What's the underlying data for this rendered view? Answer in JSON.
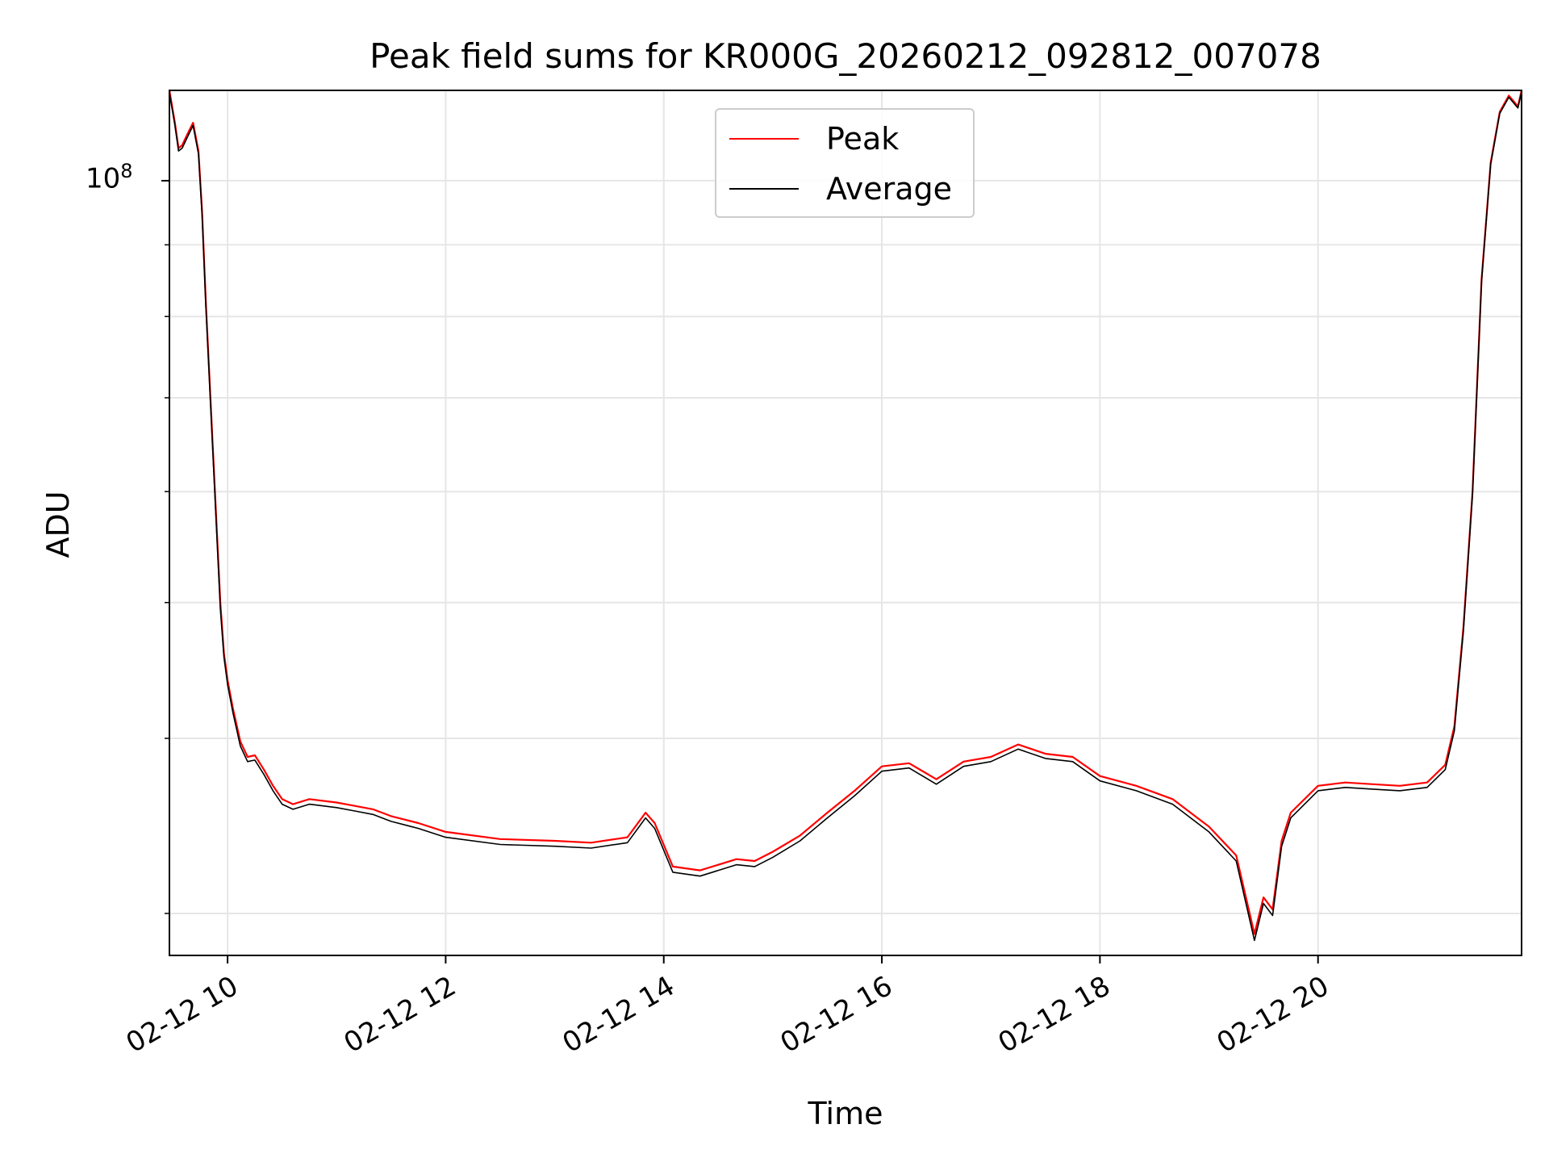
{
  "chart_data": {
    "type": "line",
    "title": "Peak field sums for KR000G_20260212_092812_007078",
    "xlabel": "Time",
    "ylabel": "ADU",
    "x_scale": "time",
    "y_scale": "log",
    "x_range": [
      "2026-02-12 09:28",
      "2026-02-12 21:52"
    ],
    "ylim": [
      28000000,
      116000000
    ],
    "x_ticks": [
      "2026-02-12 10:00",
      "2026-02-12 12:00",
      "2026-02-12 14:00",
      "2026-02-12 16:00",
      "2026-02-12 18:00",
      "2026-02-12 20:00"
    ],
    "x_tick_labels": [
      "02-12 10",
      "02-12 12",
      "02-12 14",
      "02-12 16",
      "02-12 18",
      "02-12 20"
    ],
    "y_tick_label": {
      "base": "10",
      "exp": "8",
      "value": 100000000
    },
    "y_minor_ticks": [
      30000000,
      40000000,
      50000000,
      60000000,
      70000000,
      80000000,
      90000000
    ],
    "grid": true,
    "legend_position": "top-center",
    "series": [
      {
        "name": "Peak",
        "color": "#ff0000",
        "x": [
          "2026-02-12 09:28",
          "2026-02-12 09:31",
          "2026-02-12 09:33",
          "2026-02-12 09:35",
          "2026-02-12 09:38",
          "2026-02-12 09:41",
          "2026-02-12 09:44",
          "2026-02-12 09:46",
          "2026-02-12 09:48",
          "2026-02-12 09:52",
          "2026-02-12 09:56",
          "2026-02-12 09:58",
          "2026-02-12 10:00",
          "2026-02-12 10:03",
          "2026-02-12 10:07",
          "2026-02-12 10:11",
          "2026-02-12 10:15",
          "2026-02-12 10:20",
          "2026-02-12 10:25",
          "2026-02-12 10:30",
          "2026-02-12 10:36",
          "2026-02-12 10:45",
          "2026-02-12 11:00",
          "2026-02-12 11:10",
          "2026-02-12 11:20",
          "2026-02-12 11:30",
          "2026-02-12 11:45",
          "2026-02-12 12:00",
          "2026-02-12 12:30",
          "2026-02-12 13:00",
          "2026-02-12 13:20",
          "2026-02-12 13:40",
          "2026-02-12 13:50",
          "2026-02-12 13:55",
          "2026-02-12 14:05",
          "2026-02-12 14:20",
          "2026-02-12 14:40",
          "2026-02-12 14:50",
          "2026-02-12 15:00",
          "2026-02-12 15:15",
          "2026-02-12 15:30",
          "2026-02-12 15:45",
          "2026-02-12 16:00",
          "2026-02-12 16:15",
          "2026-02-12 16:30",
          "2026-02-12 16:45",
          "2026-02-12 17:00",
          "2026-02-12 17:15",
          "2026-02-12 17:30",
          "2026-02-12 17:45",
          "2026-02-12 18:00",
          "2026-02-12 18:20",
          "2026-02-12 18:40",
          "2026-02-12 19:00",
          "2026-02-12 19:15",
          "2026-02-12 19:25",
          "2026-02-12 19:30",
          "2026-02-12 19:35",
          "2026-02-12 19:40",
          "2026-02-12 19:45",
          "2026-02-12 20:00",
          "2026-02-12 20:15",
          "2026-02-12 20:30",
          "2026-02-12 20:45",
          "2026-02-12 21:00",
          "2026-02-12 21:10",
          "2026-02-12 21:15",
          "2026-02-12 21:20",
          "2026-02-12 21:25",
          "2026-02-12 21:30",
          "2026-02-12 21:35",
          "2026-02-12 21:40",
          "2026-02-12 21:45",
          "2026-02-12 21:50",
          "2026-02-12 21:52"
        ],
        "values": [
          116000000,
          110000000,
          105500000,
          106000000,
          108000000,
          110000000,
          105000000,
          95000000,
          82000000,
          64000000,
          50000000,
          46000000,
          44000000,
          42000000,
          39800000,
          38800000,
          38900000,
          38000000,
          37000000,
          36200000,
          35900000,
          36200000,
          36000000,
          35800000,
          35600000,
          35200000,
          34800000,
          34300000,
          33900000,
          33800000,
          33700000,
          34000000,
          35400000,
          34800000,
          32400000,
          32200000,
          32800000,
          32700000,
          33200000,
          34100000,
          35400000,
          36700000,
          38200000,
          38400000,
          37400000,
          38500000,
          38800000,
          39600000,
          39000000,
          38800000,
          37600000,
          37000000,
          36200000,
          34600000,
          33000000,
          29000000,
          30800000,
          30200000,
          33800000,
          35400000,
          37000000,
          37200000,
          37100000,
          37000000,
          37200000,
          38300000,
          40800000,
          48000000,
          60000000,
          85000000,
          103000000,
          112000000,
          115000000,
          113000000,
          116000000
        ]
      },
      {
        "name": "Average",
        "color": "#000000",
        "x": [
          "2026-02-12 09:28",
          "2026-02-12 09:31",
          "2026-02-12 09:33",
          "2026-02-12 09:35",
          "2026-02-12 09:38",
          "2026-02-12 09:41",
          "2026-02-12 09:44",
          "2026-02-12 09:46",
          "2026-02-12 09:48",
          "2026-02-12 09:52",
          "2026-02-12 09:56",
          "2026-02-12 09:58",
          "2026-02-12 10:00",
          "2026-02-12 10:03",
          "2026-02-12 10:07",
          "2026-02-12 10:11",
          "2026-02-12 10:15",
          "2026-02-12 10:20",
          "2026-02-12 10:25",
          "2026-02-12 10:30",
          "2026-02-12 10:36",
          "2026-02-12 10:45",
          "2026-02-12 11:00",
          "2026-02-12 11:10",
          "2026-02-12 11:20",
          "2026-02-12 11:30",
          "2026-02-12 11:45",
          "2026-02-12 12:00",
          "2026-02-12 12:30",
          "2026-02-12 13:00",
          "2026-02-12 13:20",
          "2026-02-12 13:40",
          "2026-02-12 13:50",
          "2026-02-12 13:55",
          "2026-02-12 14:05",
          "2026-02-12 14:20",
          "2026-02-12 14:40",
          "2026-02-12 14:50",
          "2026-02-12 15:00",
          "2026-02-12 15:15",
          "2026-02-12 15:30",
          "2026-02-12 15:45",
          "2026-02-12 16:00",
          "2026-02-12 16:15",
          "2026-02-12 16:30",
          "2026-02-12 16:45",
          "2026-02-12 17:00",
          "2026-02-12 17:15",
          "2026-02-12 17:30",
          "2026-02-12 17:45",
          "2026-02-12 18:00",
          "2026-02-12 18:20",
          "2026-02-12 18:40",
          "2026-02-12 19:00",
          "2026-02-12 19:15",
          "2026-02-12 19:25",
          "2026-02-12 19:30",
          "2026-02-12 19:35",
          "2026-02-12 19:40",
          "2026-02-12 19:45",
          "2026-02-12 20:00",
          "2026-02-12 20:15",
          "2026-02-12 20:30",
          "2026-02-12 20:45",
          "2026-02-12 21:00",
          "2026-02-12 21:10",
          "2026-02-12 21:15",
          "2026-02-12 21:20",
          "2026-02-12 21:25",
          "2026-02-12 21:30",
          "2026-02-12 21:35",
          "2026-02-12 21:40",
          "2026-02-12 21:45",
          "2026-02-12 21:50",
          "2026-02-12 21:52"
        ],
        "values": [
          115500000,
          109500000,
          105000000,
          105500000,
          107500000,
          109500000,
          104500000,
          94500000,
          81500000,
          63500000,
          49500000,
          45700000,
          43700000,
          41700000,
          39500000,
          38500000,
          38600000,
          37700000,
          36700000,
          35900000,
          35600000,
          35900000,
          35700000,
          35500000,
          35300000,
          34900000,
          34500000,
          34000000,
          33600000,
          33500000,
          33400000,
          33700000,
          35100000,
          34500000,
          32100000,
          31900000,
          32500000,
          32400000,
          32900000,
          33800000,
          35100000,
          36400000,
          37900000,
          38100000,
          37100000,
          38200000,
          38500000,
          39300000,
          38700000,
          38500000,
          37300000,
          36700000,
          35900000,
          34300000,
          32700000,
          28700000,
          30500000,
          29900000,
          33500000,
          35100000,
          36700000,
          36900000,
          36800000,
          36700000,
          36900000,
          38000000,
          40500000,
          47700000,
          59700000,
          84700000,
          102700000,
          111700000,
          114700000,
          112700000,
          115700000
        ]
      }
    ]
  }
}
